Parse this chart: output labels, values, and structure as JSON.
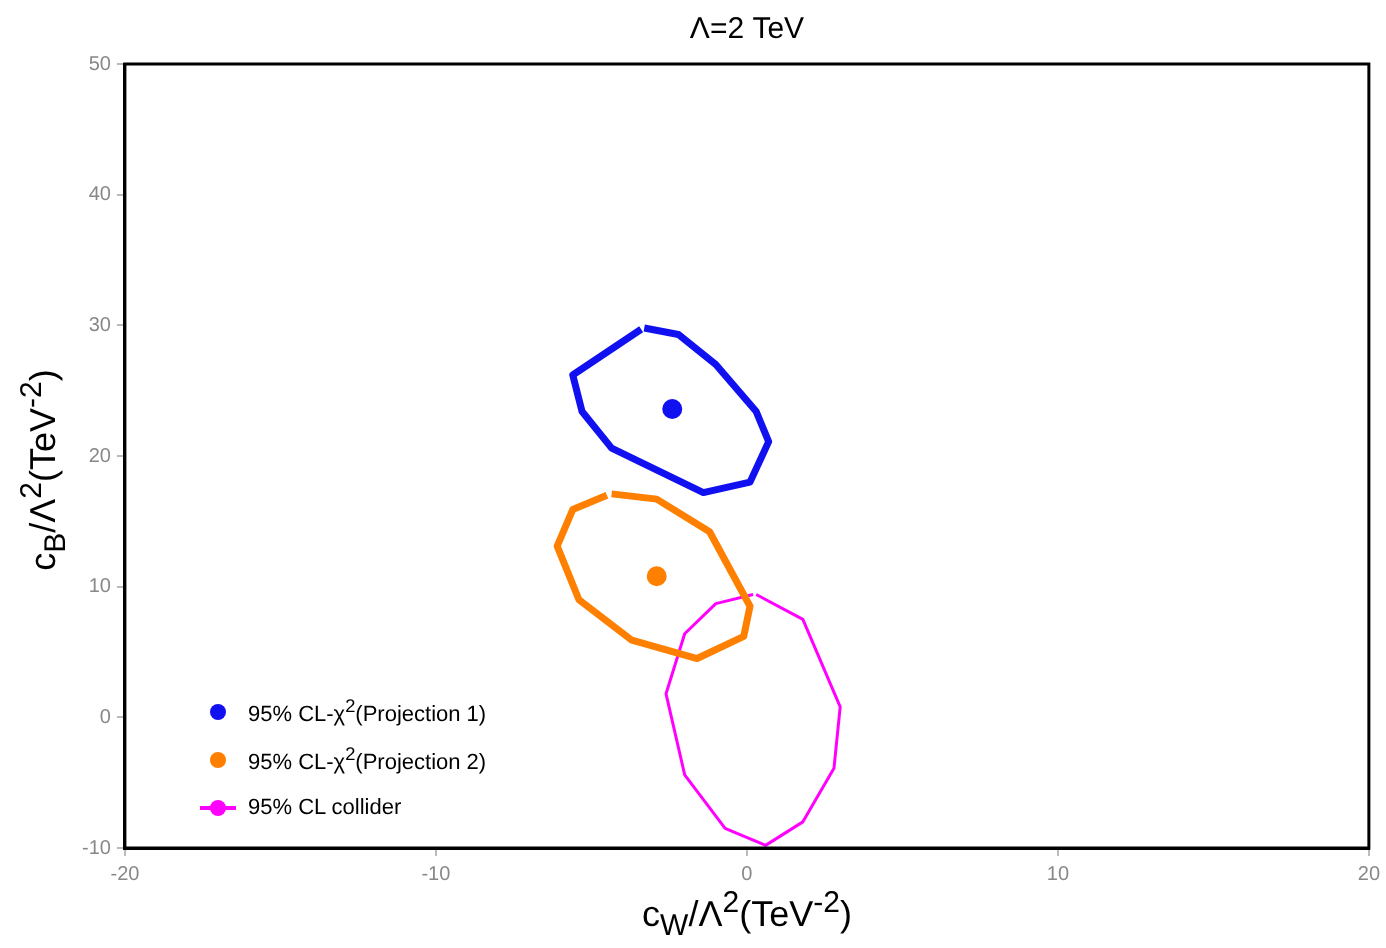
{
  "chart_data": {
    "type": "line",
    "title": "Λ=2 TeV",
    "xlabel": "c$_{W}$/Λ$^{2}$(TeV$^{-2}$)",
    "ylabel": "c$_{B}$/Λ$^{2}$(TeV$^{-2}$)",
    "xlim": [
      -20,
      20
    ],
    "ylim": [
      -10,
      50
    ],
    "xticks": [
      -20,
      -10,
      0,
      10,
      20
    ],
    "yticks": [
      -10,
      0,
      10,
      20,
      30,
      40,
      50
    ],
    "grid": false,
    "legend": "bottom left",
    "series": [
      {
        "name": "95% CL-χ$^{2}$(Projection 1)",
        "type": "scatter",
        "color": "#1010f0",
        "x": [
          -2.4
        ],
        "values": [
          23.6
        ]
      },
      {
        "color": "#1010f0",
        "x": [
          -3.4,
          -5.6,
          -5.3,
          -4.35,
          -1.4,
          0.1,
          0.7,
          0.3,
          -1.0,
          -2.2,
          -3.3
        ],
        "values": [
          29.7,
          26.2,
          23.4,
          20.6,
          17.2,
          18.0,
          21.1,
          23.4,
          27.0,
          29.3,
          29.8
        ]
      },
      {
        "name": "95% CL-χ$^{2}$(Projection 2)",
        "type": "scatter",
        "color": "#ff8000",
        "x": [
          -2.9
        ],
        "values": [
          10.8
        ]
      },
      {
        "color": "#ff8000",
        "x": [
          -4.35,
          -2.9,
          -1.2,
          0.1,
          -0.1,
          -1.6,
          -3.7,
          -5.4,
          -6.1,
          -5.6,
          -4.5
        ],
        "values": [
          17.1,
          16.7,
          14.2,
          8.5,
          6.2,
          4.5,
          5.9,
          9.0,
          13.1,
          15.9,
          17.0
        ]
      },
      {
        "name": "95% CL collider",
        "color": "#ff00ff",
        "x": [
          0.3,
          1.8,
          3.0,
          2.8,
          1.8,
          0.6,
          -0.7,
          -2.0,
          -2.6,
          -2.0,
          -1.0,
          0.2
        ],
        "values": [
          9.4,
          7.5,
          0.8,
          -3.9,
          -8.0,
          -9.8,
          -8.5,
          -4.4,
          1.8,
          6.4,
          8.7,
          9.4
        ]
      }
    ]
  }
}
